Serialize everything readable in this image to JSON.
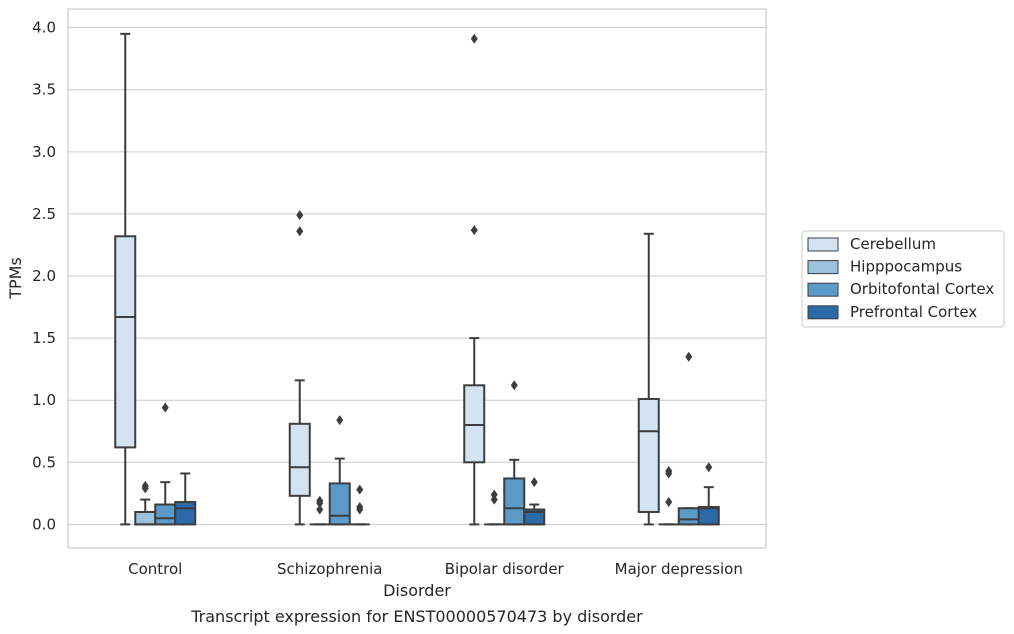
{
  "caption": "Transcript expression for ENST00000570473 by disorder",
  "chart_data": {
    "type": "boxplot",
    "xlabel": "Disorder",
    "ylabel": "TPMs",
    "ylim": [
      -0.19,
      4.15
    ],
    "yticks": [
      "0.0",
      "0.5",
      "1.0",
      "1.5",
      "2.0",
      "2.5",
      "3.0",
      "3.5",
      "4.0"
    ],
    "grid": "horizontal",
    "legend_position": "right",
    "categories": [
      "Control",
      "Schizophrenia",
      "Bipolar disorder",
      "Major depression"
    ],
    "series": [
      {
        "name": "Cerebellum",
        "color": "#d4e3f1",
        "boxes": [
          {
            "q1": 0.62,
            "median": 1.67,
            "q3": 2.32,
            "whislo": 0.0,
            "whishi": 3.95,
            "fliers": []
          },
          {
            "q1": 0.23,
            "median": 0.46,
            "q3": 0.81,
            "whislo": 0.0,
            "whishi": 1.16,
            "fliers": [
              2.49,
              2.36
            ]
          },
          {
            "q1": 0.5,
            "median": 0.8,
            "q3": 1.12,
            "whislo": 0.0,
            "whishi": 1.5,
            "fliers": [
              3.91,
              2.37
            ]
          },
          {
            "q1": 0.1,
            "median": 0.75,
            "q3": 1.01,
            "whislo": 0.0,
            "whishi": 2.34,
            "fliers": []
          }
        ]
      },
      {
        "name": "Hipppocampus",
        "color": "#9cc2de",
        "boxes": [
          {
            "q1": 0.0,
            "median": 0.0,
            "q3": 0.1,
            "whislo": 0.0,
            "whishi": 0.2,
            "fliers": [
              0.31,
              0.29
            ]
          },
          {
            "q1": 0.0,
            "median": 0.0,
            "q3": 0.0,
            "whislo": 0.0,
            "whishi": 0.0,
            "fliers": [
              0.19,
              0.17,
              0.12
            ]
          },
          {
            "q1": 0.0,
            "median": 0.0,
            "q3": 0.0,
            "whislo": 0.0,
            "whishi": 0.0,
            "fliers": [
              0.24,
              0.2
            ]
          },
          {
            "q1": 0.0,
            "median": 0.0,
            "q3": 0.0,
            "whislo": 0.0,
            "whishi": 0.0,
            "fliers": [
              0.43,
              0.41,
              0.18
            ]
          }
        ]
      },
      {
        "name": "Orbitofontal Cortex",
        "color": "#5a9bc9",
        "boxes": [
          {
            "q1": 0.0,
            "median": 0.05,
            "q3": 0.16,
            "whislo": 0.0,
            "whishi": 0.34,
            "fliers": [
              0.94
            ]
          },
          {
            "q1": 0.0,
            "median": 0.07,
            "q3": 0.33,
            "whislo": 0.0,
            "whishi": 0.53,
            "fliers": [
              0.84
            ]
          },
          {
            "q1": 0.0,
            "median": 0.13,
            "q3": 0.37,
            "whislo": 0.0,
            "whishi": 0.52,
            "fliers": [
              1.12
            ]
          },
          {
            "q1": 0.0,
            "median": 0.04,
            "q3": 0.13,
            "whislo": 0.0,
            "whishi": 0.13,
            "fliers": [
              1.35
            ]
          }
        ]
      },
      {
        "name": "Prefrontal Cortex",
        "color": "#2a6aa9",
        "boxes": [
          {
            "q1": 0.0,
            "median": 0.13,
            "q3": 0.18,
            "whislo": 0.0,
            "whishi": 0.41,
            "fliers": []
          },
          {
            "q1": 0.0,
            "median": 0.0,
            "q3": 0.0,
            "whislo": 0.0,
            "whishi": 0.0,
            "fliers": [
              0.28,
              0.14,
              0.12
            ]
          },
          {
            "q1": 0.0,
            "median": 0.1,
            "q3": 0.12,
            "whislo": 0.0,
            "whishi": 0.16,
            "fliers": [
              0.34
            ]
          },
          {
            "q1": 0.0,
            "median": 0.13,
            "q3": 0.14,
            "whislo": 0.0,
            "whishi": 0.3,
            "fliers": [
              0.46
            ]
          }
        ]
      }
    ]
  }
}
